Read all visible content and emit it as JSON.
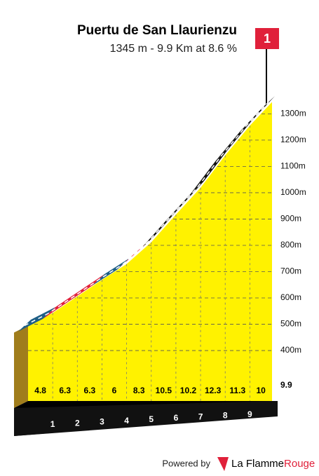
{
  "chart_data": {
    "type": "climb-profile",
    "title": "Puertu de San Llaurienzu",
    "subtitle": "1345 m - 9.9 Km at 8.6 %",
    "flag": "1",
    "x": [
      0,
      1,
      2,
      3,
      4,
      5,
      6,
      7,
      8,
      9,
      9.9
    ],
    "elevation": [
      495,
      543,
      606,
      669,
      729,
      812,
      917,
      1019,
      1142,
      1255,
      1345
    ],
    "gradients": [
      4.8,
      6.3,
      6.3,
      6.0,
      8.3,
      10.5,
      10.2,
      12.3,
      11.3,
      10.0
    ],
    "segment_colors": [
      "#1f5f86",
      "#e0203a",
      "#e0203a",
      "#1f5f86",
      "#e0203a",
      "#111111",
      "#111111",
      "#111111",
      "#111111",
      "#111111"
    ],
    "fill_color": "#fff200",
    "xlim": [
      0,
      9.9
    ],
    "ylim": [
      300,
      1350
    ],
    "yticks": [
      {
        "value": 400,
        "label": "400m"
      },
      {
        "value": 500,
        "label": "500m"
      },
      {
        "value": 600,
        "label": "600m"
      },
      {
        "value": 700,
        "label": "700m"
      },
      {
        "value": 800,
        "label": "800m"
      },
      {
        "value": 900,
        "label": "900m"
      },
      {
        "value": 1000,
        "label": "1000m"
      },
      {
        "value": 1100,
        "label": "1100m"
      },
      {
        "value": 1200,
        "label": "1200m"
      },
      {
        "value": 1300,
        "label": "1300m"
      }
    ],
    "grid": true,
    "footer": {
      "powered_by": "Powered by",
      "brand": "La Flamme",
      "brand_accent": "Rouge"
    }
  }
}
